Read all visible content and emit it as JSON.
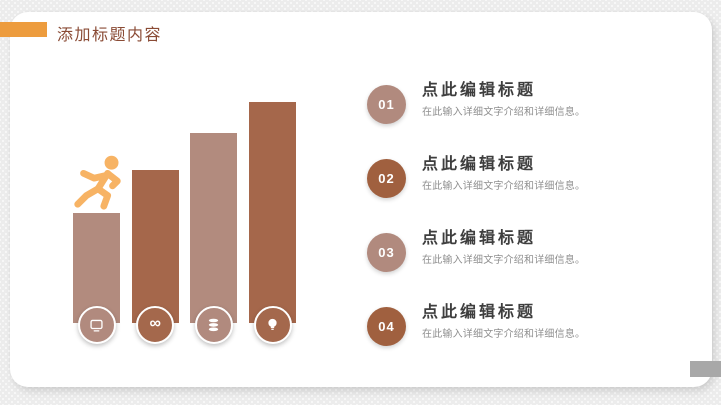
{
  "header": {
    "title": "添加标题内容",
    "accent_color": "#ED9C3E",
    "title_color": "#8A4B35"
  },
  "chart_data": {
    "type": "bar",
    "title": "",
    "note": "decorative ascending-steps bar graphic, no axes or value labels",
    "categories": [
      "step-1",
      "step-2",
      "step-3",
      "step-4"
    ],
    "values": [
      110,
      153,
      190,
      221
    ],
    "unit": "px (relative heights)",
    "colors": [
      "#B28B7E",
      "#A5674B",
      "#B28B7E",
      "#A5674B"
    ],
    "icon_circle_colors": [
      "#B18A7E",
      "#A4684C",
      "#B18A7E",
      "#A4684C"
    ],
    "icons": [
      "monitor-icon",
      "infinity-icon",
      "database-icon",
      "lightbulb-icon"
    ],
    "infinity_glyph": "∞",
    "runner_icon_color": "#F7B364",
    "axes": "none",
    "gridlines": "none",
    "legend": "none"
  },
  "items": [
    {
      "number": "01",
      "title": "点此编辑标题",
      "description": "在此输入详细文字介绍和详细信息。",
      "badge_color": "#B18A7E"
    },
    {
      "number": "02",
      "title": "点此编辑标题",
      "description": "在此输入详细文字介绍和详细信息。",
      "badge_color": "#A0603F"
    },
    {
      "number": "03",
      "title": "点此编辑标题",
      "description": "在此输入详细文字介绍和详细信息。",
      "badge_color": "#B18A7E"
    },
    {
      "number": "04",
      "title": "点此编辑标题",
      "description": "在此输入详细文字介绍和详细信息。",
      "badge_color": "#A0603F"
    }
  ],
  "scrollbar": {
    "thumb_color": "#A8A8A8"
  }
}
